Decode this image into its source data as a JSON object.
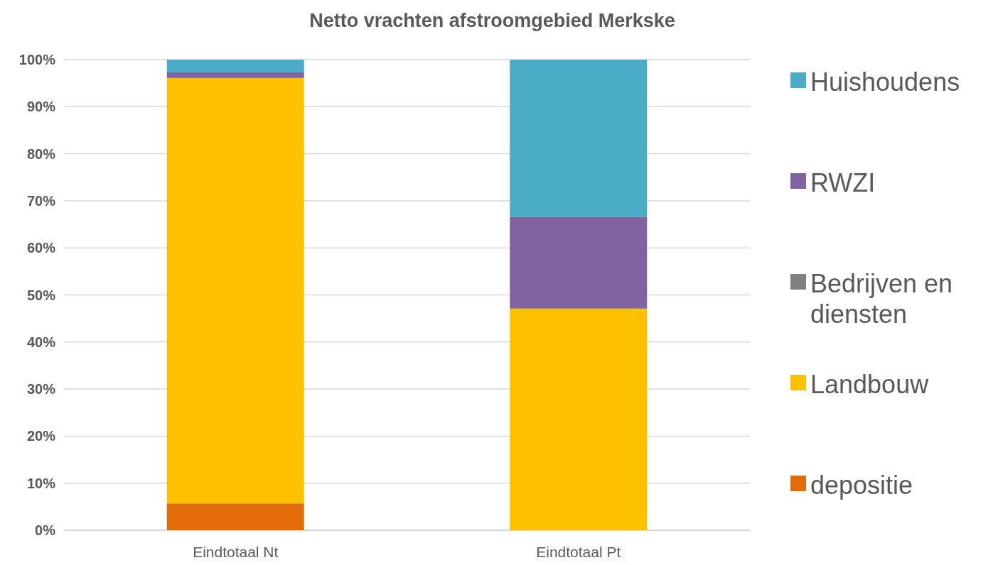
{
  "chart_data": {
    "type": "bar",
    "title": "Netto vrachten afstroomgebied Merkske",
    "stacked": true,
    "categories": [
      "Eindtotaal Nt",
      "Eindtotaal Pt"
    ],
    "series": [
      {
        "name": "depositie",
        "color": "#e36c0a",
        "values": [
          5.7,
          0
        ]
      },
      {
        "name": "Landbouw",
        "color": "#ffc000",
        "values": [
          90.4,
          47.1
        ]
      },
      {
        "name": "Bedrijven en diensten",
        "color": "#7f7f7f",
        "values": [
          0,
          0
        ]
      },
      {
        "name": "RWZI",
        "color": "#8064a2",
        "values": [
          1.2,
          19.5
        ]
      },
      {
        "name": "Huishoudens",
        "color": "#4bacc6",
        "values": [
          2.7,
          33.4
        ]
      }
    ],
    "ylim": [
      0,
      100
    ],
    "yticks": [
      {
        "value": 0,
        "label": "0%"
      },
      {
        "value": 10,
        "label": "10%"
      },
      {
        "value": 20,
        "label": "20%"
      },
      {
        "value": 30,
        "label": "30%"
      },
      {
        "value": 40,
        "label": "40%"
      },
      {
        "value": 50,
        "label": "50%"
      },
      {
        "value": 60,
        "label": "60%"
      },
      {
        "value": 70,
        "label": "70%"
      },
      {
        "value": 80,
        "label": "80%"
      },
      {
        "value": 90,
        "label": "90%"
      },
      {
        "value": 100,
        "label": "100%"
      }
    ],
    "grid": "y",
    "legend": "right"
  }
}
